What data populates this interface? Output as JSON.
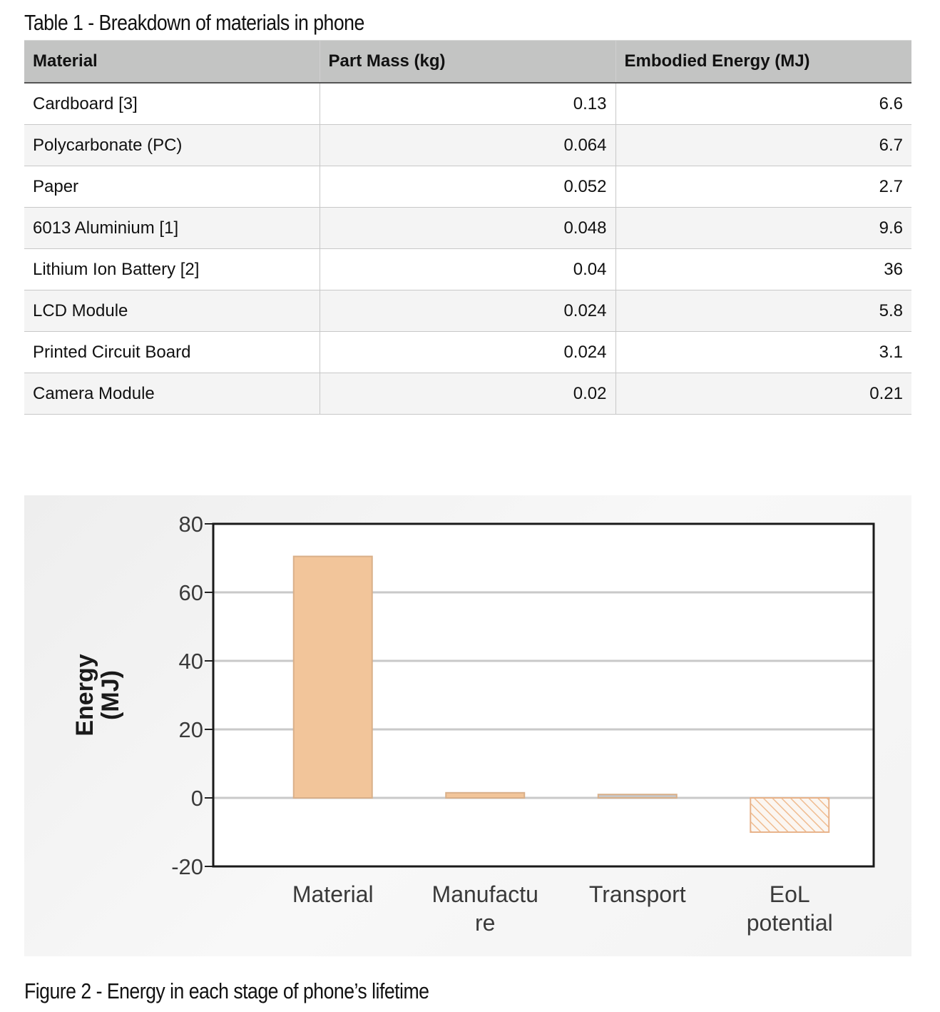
{
  "table": {
    "caption": "Table 1 - Breakdown of materials in phone",
    "headers": [
      "Material",
      "Part Mass (kg)",
      "Embodied Energy (MJ)"
    ],
    "rows": [
      [
        "Cardboard [3]",
        "0.13",
        "6.6"
      ],
      [
        "Polycarbonate (PC)",
        "0.064",
        "6.7"
      ],
      [
        "Paper",
        "0.052",
        "2.7"
      ],
      [
        "6013 Aluminium [1]",
        "0.048",
        "9.6"
      ],
      [
        "Lithium Ion Battery [2]",
        "0.04",
        "36"
      ],
      [
        "LCD Module",
        "0.024",
        "5.8"
      ],
      [
        "Printed Circuit Board",
        "0.024",
        "3.1"
      ],
      [
        "Camera Module",
        "0.02",
        "0.21"
      ]
    ]
  },
  "figure": {
    "caption": "Figure 2 - Energy in each stage of phone’s lifetime"
  },
  "chart_data": {
    "type": "bar",
    "title": "",
    "xlabel": "",
    "ylabel": "Energy (MJ)",
    "ylabel_lines": [
      "Energy",
      "(MJ)"
    ],
    "categories": [
      "Material",
      "Manufacture",
      "Transport",
      "EoL potential"
    ],
    "category_label_lines": [
      [
        "Material"
      ],
      [
        "Manufactu",
        "re"
      ],
      [
        "Transport"
      ],
      [
        "EoL",
        "potential"
      ]
    ],
    "values": [
      70.5,
      1.5,
      1.0,
      -10.0
    ],
    "bar_colors": [
      "#f2c59a",
      "#f2c59a",
      "#c8c8c8",
      "#f4c9a6"
    ],
    "hatched": [
      false,
      false,
      false,
      true
    ],
    "ylim": [
      -20,
      80
    ],
    "yticks": [
      80,
      60,
      40,
      20,
      0,
      -20
    ],
    "grid": true,
    "legend": "none"
  }
}
